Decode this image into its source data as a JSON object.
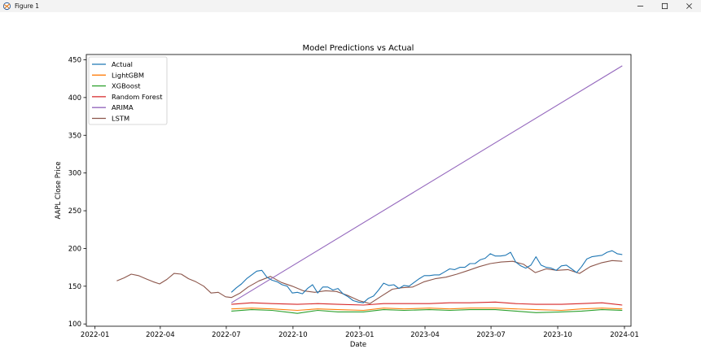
{
  "window": {
    "title": "Figure 1",
    "icon": "matplotlib-figure-icon",
    "controls": [
      "minimize-icon",
      "maximize-icon",
      "close-icon"
    ]
  },
  "chart_data": {
    "type": "line",
    "title": "Model Predictions vs Actual",
    "xlabel": "Date",
    "ylabel": "AAPL Close Price",
    "xlim": [
      "2021-12-20",
      "2024-01-10"
    ],
    "ylim": [
      97,
      457
    ],
    "x_ticks": [
      "2022-01",
      "2022-04",
      "2022-07",
      "2022-10",
      "2023-01",
      "2023-04",
      "2023-07",
      "2023-10",
      "2024-01"
    ],
    "y_ticks": [
      100,
      150,
      200,
      250,
      300,
      350,
      400,
      450
    ],
    "grid": false,
    "legend_position": "top-left",
    "series": [
      {
        "name": "Actual",
        "color": "#1f77b4",
        "points": [
          [
            "2022-07-08",
            142
          ],
          [
            "2022-07-15",
            148
          ],
          [
            "2022-07-22",
            153
          ],
          [
            "2022-07-29",
            160
          ],
          [
            "2022-08-05",
            165
          ],
          [
            "2022-08-12",
            170
          ],
          [
            "2022-08-19",
            171
          ],
          [
            "2022-08-26",
            162
          ],
          [
            "2022-09-02",
            158
          ],
          [
            "2022-09-09",
            156
          ],
          [
            "2022-09-16",
            152
          ],
          [
            "2022-09-23",
            150
          ],
          [
            "2022-09-30",
            141
          ],
          [
            "2022-10-07",
            142
          ],
          [
            "2022-10-14",
            140
          ],
          [
            "2022-10-21",
            147
          ],
          [
            "2022-10-28",
            152
          ],
          [
            "2022-11-04",
            141
          ],
          [
            "2022-11-11",
            149
          ],
          [
            "2022-11-18",
            149
          ],
          [
            "2022-11-25",
            145
          ],
          [
            "2022-12-02",
            147
          ],
          [
            "2022-12-09",
            140
          ],
          [
            "2022-12-16",
            136
          ],
          [
            "2022-12-23",
            131
          ],
          [
            "2022-12-30",
            129
          ],
          [
            "2023-01-06",
            128
          ],
          [
            "2023-01-13",
            134
          ],
          [
            "2023-01-20",
            137
          ],
          [
            "2023-01-27",
            145
          ],
          [
            "2023-02-03",
            154
          ],
          [
            "2023-02-10",
            151
          ],
          [
            "2023-02-17",
            152
          ],
          [
            "2023-02-24",
            147
          ],
          [
            "2023-03-03",
            151
          ],
          [
            "2023-03-10",
            150
          ],
          [
            "2023-03-17",
            155
          ],
          [
            "2023-03-24",
            160
          ],
          [
            "2023-03-31",
            164
          ],
          [
            "2023-04-07",
            164
          ],
          [
            "2023-04-14",
            165
          ],
          [
            "2023-04-21",
            165
          ],
          [
            "2023-04-28",
            169
          ],
          [
            "2023-05-05",
            173
          ],
          [
            "2023-05-12",
            172
          ],
          [
            "2023-05-19",
            175
          ],
          [
            "2023-05-26",
            175
          ],
          [
            "2023-06-02",
            180
          ],
          [
            "2023-06-09",
            180
          ],
          [
            "2023-06-16",
            185
          ],
          [
            "2023-06-23",
            187
          ],
          [
            "2023-06-30",
            193
          ],
          [
            "2023-07-07",
            190
          ],
          [
            "2023-07-14",
            190
          ],
          [
            "2023-07-21",
            191
          ],
          [
            "2023-07-28",
            195
          ],
          [
            "2023-08-04",
            182
          ],
          [
            "2023-08-11",
            177
          ],
          [
            "2023-08-18",
            174
          ],
          [
            "2023-08-25",
            178
          ],
          [
            "2023-09-01",
            189
          ],
          [
            "2023-09-08",
            178
          ],
          [
            "2023-09-15",
            175
          ],
          [
            "2023-09-22",
            174
          ],
          [
            "2023-09-29",
            171
          ],
          [
            "2023-10-06",
            177
          ],
          [
            "2023-10-13",
            178
          ],
          [
            "2023-10-20",
            173
          ],
          [
            "2023-10-27",
            168
          ],
          [
            "2023-11-03",
            176
          ],
          [
            "2023-11-10",
            186
          ],
          [
            "2023-11-17",
            189
          ],
          [
            "2023-11-24",
            190
          ],
          [
            "2023-12-01",
            191
          ],
          [
            "2023-12-08",
            195
          ],
          [
            "2023-12-15",
            197
          ],
          [
            "2023-12-22",
            193
          ],
          [
            "2023-12-29",
            192
          ]
        ]
      },
      {
        "name": "LightGBM",
        "color": "#ff7f0e",
        "points": [
          [
            "2022-07-08",
            120
          ],
          [
            "2022-08-05",
            121
          ],
          [
            "2022-09-02",
            120
          ],
          [
            "2022-10-07",
            118
          ],
          [
            "2022-11-04",
            120
          ],
          [
            "2022-12-02",
            119
          ],
          [
            "2023-01-06",
            118
          ],
          [
            "2023-02-03",
            121
          ],
          [
            "2023-03-03",
            120
          ],
          [
            "2023-04-07",
            121
          ],
          [
            "2023-05-05",
            120
          ],
          [
            "2023-06-02",
            121
          ],
          [
            "2023-07-07",
            121
          ],
          [
            "2023-08-04",
            120
          ],
          [
            "2023-09-01",
            119
          ],
          [
            "2023-10-06",
            118
          ],
          [
            "2023-11-03",
            120
          ],
          [
            "2023-12-01",
            121
          ],
          [
            "2023-12-29",
            120
          ]
        ]
      },
      {
        "name": "XGBoost",
        "color": "#2ca02c",
        "points": [
          [
            "2022-07-08",
            117
          ],
          [
            "2022-08-05",
            119
          ],
          [
            "2022-09-02",
            118
          ],
          [
            "2022-10-07",
            114
          ],
          [
            "2022-11-04",
            118
          ],
          [
            "2022-12-02",
            116
          ],
          [
            "2023-01-06",
            116
          ],
          [
            "2023-02-03",
            119
          ],
          [
            "2023-03-03",
            118
          ],
          [
            "2023-04-07",
            119
          ],
          [
            "2023-05-05",
            118
          ],
          [
            "2023-06-02",
            119
          ],
          [
            "2023-07-07",
            119
          ],
          [
            "2023-08-04",
            117
          ],
          [
            "2023-09-01",
            115
          ],
          [
            "2023-10-06",
            116
          ],
          [
            "2023-11-03",
            117
          ],
          [
            "2023-12-01",
            119
          ],
          [
            "2023-12-29",
            118
          ]
        ]
      },
      {
        "name": "Random Forest",
        "color": "#d62728",
        "points": [
          [
            "2022-07-08",
            126
          ],
          [
            "2022-08-05",
            128
          ],
          [
            "2022-09-02",
            127
          ],
          [
            "2022-10-07",
            126
          ],
          [
            "2022-11-04",
            127
          ],
          [
            "2022-12-02",
            126
          ],
          [
            "2023-01-06",
            125
          ],
          [
            "2023-02-03",
            127
          ],
          [
            "2023-03-03",
            127
          ],
          [
            "2023-04-07",
            127
          ],
          [
            "2023-05-05",
            128
          ],
          [
            "2023-06-02",
            128
          ],
          [
            "2023-07-07",
            129
          ],
          [
            "2023-08-04",
            127
          ],
          [
            "2023-09-01",
            126
          ],
          [
            "2023-10-06",
            126
          ],
          [
            "2023-11-03",
            127
          ],
          [
            "2023-12-01",
            128
          ],
          [
            "2023-12-29",
            125
          ]
        ]
      },
      {
        "name": "ARIMA",
        "color": "#9467bd",
        "points": [
          [
            "2022-07-08",
            128
          ],
          [
            "2023-12-29",
            442
          ]
        ]
      },
      {
        "name": "LSTM",
        "color": "#8c564b",
        "points": [
          [
            "2022-01-31",
            157
          ],
          [
            "2022-02-10",
            161
          ],
          [
            "2022-02-20",
            166
          ],
          [
            "2022-03-02",
            164
          ],
          [
            "2022-03-12",
            160
          ],
          [
            "2022-03-22",
            156
          ],
          [
            "2022-03-31",
            153
          ],
          [
            "2022-04-10",
            159
          ],
          [
            "2022-04-20",
            167
          ],
          [
            "2022-04-30",
            166
          ],
          [
            "2022-05-10",
            160
          ],
          [
            "2022-05-20",
            156
          ],
          [
            "2022-05-31",
            150
          ],
          [
            "2022-06-10",
            141
          ],
          [
            "2022-06-20",
            142
          ],
          [
            "2022-06-30",
            136
          ],
          [
            "2022-07-08",
            135
          ],
          [
            "2022-07-20",
            141
          ],
          [
            "2022-07-31",
            149
          ],
          [
            "2022-08-15",
            157
          ],
          [
            "2022-08-31",
            163
          ],
          [
            "2022-09-15",
            155
          ],
          [
            "2022-09-30",
            150
          ],
          [
            "2022-10-15",
            144
          ],
          [
            "2022-10-31",
            142
          ],
          [
            "2022-11-15",
            144
          ],
          [
            "2022-11-30",
            143
          ],
          [
            "2022-12-15",
            138
          ],
          [
            "2022-12-31",
            131
          ],
          [
            "2023-01-15",
            127
          ],
          [
            "2023-01-31",
            137
          ],
          [
            "2023-02-15",
            146
          ],
          [
            "2023-02-28",
            148
          ],
          [
            "2023-03-15",
            149
          ],
          [
            "2023-03-31",
            156
          ],
          [
            "2023-04-15",
            160
          ],
          [
            "2023-04-30",
            162
          ],
          [
            "2023-05-15",
            166
          ],
          [
            "2023-05-31",
            171
          ],
          [
            "2023-06-15",
            176
          ],
          [
            "2023-06-30",
            180
          ],
          [
            "2023-07-15",
            182
          ],
          [
            "2023-07-31",
            183
          ],
          [
            "2023-08-15",
            179
          ],
          [
            "2023-08-31",
            168
          ],
          [
            "2023-09-15",
            173
          ],
          [
            "2023-09-30",
            171
          ],
          [
            "2023-10-15",
            172
          ],
          [
            "2023-10-31",
            167
          ],
          [
            "2023-11-15",
            176
          ],
          [
            "2023-11-30",
            181
          ],
          [
            "2023-12-15",
            184
          ],
          [
            "2023-12-29",
            183
          ]
        ]
      }
    ]
  }
}
